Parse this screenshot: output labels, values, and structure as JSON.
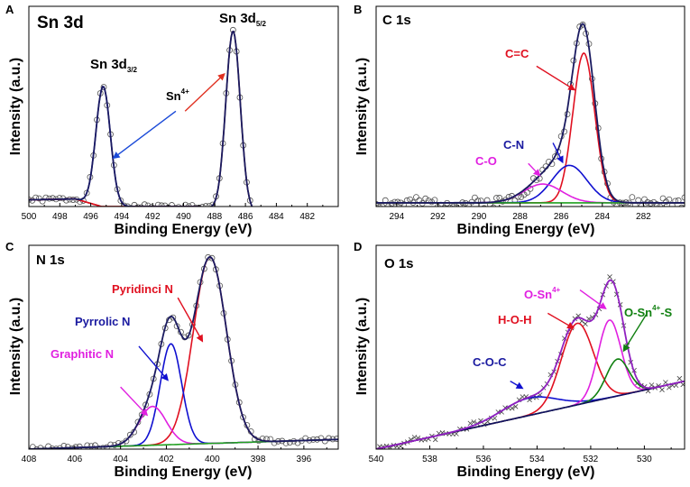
{
  "chart_data": [
    {
      "type": "line",
      "panel_letter": "A",
      "title": "Sn 3d",
      "xlabel": "Binding Energy (eV)",
      "ylabel": "Intensity (a.u.)",
      "xlim": [
        500,
        480
      ],
      "x_ticks": [
        500,
        498,
        496,
        494,
        492,
        490,
        488,
        486,
        484,
        482
      ],
      "ylim": [
        0,
        1.05
      ],
      "grid": false,
      "baseline": [
        [
          500,
          0.035
        ],
        [
          497,
          0.04
        ],
        [
          495.3,
          0.0
        ],
        [
          489,
          0.0
        ],
        [
          486.8,
          -0.03
        ],
        [
          480,
          -0.03
        ]
      ],
      "peaks": [
        {
          "name": "Sn 3d3/2",
          "center": 495.2,
          "fwhm": 1.1,
          "height": 0.63,
          "color": "#1010d0"
        },
        {
          "name": "Sn 3d5/2",
          "center": 486.8,
          "fwhm": 1.1,
          "height": 0.95,
          "color": "#8b2500"
        }
      ],
      "series": [
        {
          "name": "background",
          "color": "#e01020",
          "curve": "baseline"
        },
        {
          "name": "fit",
          "color": "#1a1a60",
          "curve": "envelope"
        }
      ],
      "data_points": {
        "marker": "circle",
        "step": 0.22,
        "noise": 0.012,
        "seed": 1
      },
      "annotations": [
        {
          "text": "Sn 3d",
          "sub": "3/2",
          "color": "#000000"
        },
        {
          "text": "Sn 3d",
          "sub": "5/2",
          "color": "#000000"
        },
        {
          "text": "Sn",
          "sup": "4+",
          "color": "#000000"
        }
      ],
      "arrows": [
        {
          "color": "#1a4ad8",
          "from": [
            490.5,
            0.5
          ],
          "to": [
            494.6,
            0.25
          ]
        },
        {
          "color": "#e03020",
          "from": [
            489.9,
            0.5
          ],
          "to": [
            487.3,
            0.7
          ]
        }
      ]
    },
    {
      "type": "line",
      "panel_letter": "B",
      "title": "C 1s",
      "xlabel": "Binding Energy (eV)",
      "ylabel": "Intensity (a.u.)",
      "xlim": [
        295,
        280
      ],
      "x_ticks": [
        294,
        292,
        290,
        288,
        286,
        284,
        282
      ],
      "ylim": [
        -0.02,
        1.05
      ],
      "grid": false,
      "baseline": [
        [
          295,
          0.0
        ],
        [
          280,
          0.0
        ]
      ],
      "peaks": [
        {
          "name": "C=C",
          "center": 284.9,
          "fwhm": 1.25,
          "height": 0.8,
          "color": "#e01020"
        },
        {
          "name": "C-N",
          "center": 285.6,
          "fwhm": 2.0,
          "height": 0.2,
          "color": "#1010d0"
        },
        {
          "name": "C-O",
          "center": 286.9,
          "fwhm": 2.2,
          "height": 0.1,
          "color": "#e020e0"
        }
      ],
      "series": [
        {
          "name": "background",
          "color": "#20a020",
          "curve": "baseline"
        },
        {
          "name": "fit",
          "color": "#1a1a60",
          "curve": "envelope"
        }
      ],
      "data_points": {
        "marker": "circle",
        "step": 0.15,
        "noise": 0.03,
        "seed": 2
      },
      "annotations": [
        {
          "text": "C=C",
          "color": "#e01020"
        },
        {
          "text": "C-N",
          "color": "#1a1aa0"
        },
        {
          "text": "C-O",
          "color": "#e020e0"
        }
      ],
      "arrows": [
        {
          "color": "#e01020",
          "from": [
            287.2,
            0.73
          ],
          "to": [
            285.3,
            0.6
          ]
        },
        {
          "color": "#1010d0",
          "from": [
            286.4,
            0.32
          ],
          "to": [
            285.9,
            0.21
          ]
        },
        {
          "color": "#e020e0",
          "from": [
            287.6,
            0.21
          ],
          "to": [
            287.0,
            0.14
          ]
        }
      ]
    },
    {
      "type": "line",
      "panel_letter": "C",
      "title": "N 1s",
      "xlabel": "Binding Energy (eV)",
      "ylabel": "Intensity (a.u.)",
      "xlim": [
        408,
        394.5
      ],
      "x_ticks": [
        408,
        406,
        404,
        402,
        400,
        398,
        396
      ],
      "ylim": [
        0,
        1.05
      ],
      "grid": false,
      "baseline": [
        [
          408,
          0.0
        ],
        [
          394.5,
          0.05
        ]
      ],
      "peaks": [
        {
          "name": "Pyridinci N",
          "center": 400.1,
          "fwhm": 1.7,
          "height": 0.96,
          "color": "#e01020"
        },
        {
          "name": "Pyrrolic N",
          "center": 401.8,
          "fwhm": 1.1,
          "height": 0.52,
          "color": "#1010d0"
        },
        {
          "name": "Graphitic N",
          "center": 402.6,
          "fwhm": 1.4,
          "height": 0.2,
          "color": "#e020e0"
        }
      ],
      "series": [
        {
          "name": "background",
          "color": "#20a020",
          "curve": "baseline"
        },
        {
          "name": "fit",
          "color": "#1a1a60",
          "curve": "envelope"
        }
      ],
      "data_points": {
        "marker": "circle",
        "step": 0.17,
        "noise": 0.012,
        "seed": 3
      },
      "annotations": [
        {
          "text": "Pyridinci N",
          "color": "#e01020"
        },
        {
          "text": "Pyrrolic N",
          "color": "#1a1aa0"
        },
        {
          "text": "Graphitic N",
          "color": "#e020e0"
        }
      ],
      "arrows": [
        {
          "color": "#e01020",
          "from": [
            401.5,
            0.78
          ],
          "to": [
            400.4,
            0.55
          ]
        },
        {
          "color": "#1010d0",
          "from": [
            403.2,
            0.53
          ],
          "to": [
            401.9,
            0.35
          ]
        },
        {
          "color": "#e020e0",
          "from": [
            404.0,
            0.32
          ],
          "to": [
            402.8,
            0.17
          ]
        }
      ]
    },
    {
      "type": "line",
      "panel_letter": "D",
      "title": "O 1s",
      "xlabel": "Binding Energy (eV)",
      "ylabel": "Intensity (a.u.)",
      "xlim": [
        540,
        528.5
      ],
      "x_ticks": [
        540,
        538,
        536,
        534,
        532,
        530
      ],
      "ylim": [
        0,
        1.05
      ],
      "grid": false,
      "baseline": [
        [
          540,
          0.0
        ],
        [
          528.5,
          0.35
        ]
      ],
      "peaks": [
        {
          "name": "C-O-C",
          "center": 534.3,
          "fwhm": 2.4,
          "height": 0.09,
          "color": "#1010d0"
        },
        {
          "name": "H-O-H",
          "center": 532.5,
          "fwhm": 1.4,
          "height": 0.42,
          "color": "#e01020"
        },
        {
          "name": "O-Sn4+",
          "center": 531.3,
          "fwhm": 1.0,
          "height": 0.4,
          "color": "#e020e0"
        },
        {
          "name": "O-Sn4+-S",
          "center": 531.0,
          "fwhm": 1.0,
          "height": 0.19,
          "color": "#108010"
        }
      ],
      "series": [
        {
          "name": "background",
          "color": "#101060",
          "curve": "baseline"
        },
        {
          "name": "fit",
          "color": "#9020c0",
          "curve": "envelope"
        }
      ],
      "data_points": {
        "marker": "cross",
        "step": 0.13,
        "noise": 0.02,
        "seed": 4
      },
      "annotations": [
        {
          "text": "C-O-C",
          "color": "#1a1aa0"
        },
        {
          "text": "H-O-H",
          "color": "#e01020"
        },
        {
          "text": "O-Sn",
          "sup": "4+",
          "color": "#e020e0"
        },
        {
          "text": "O-Sn",
          "sup": "4+",
          "tail": "-S",
          "color": "#108010"
        }
      ],
      "arrows": [
        {
          "color": "#1010d0",
          "from": [
            535.0,
            0.35
          ],
          "to": [
            534.5,
            0.31
          ]
        },
        {
          "color": "#e01020",
          "from": [
            533.6,
            0.7
          ],
          "to": [
            532.6,
            0.62
          ]
        },
        {
          "color": "#e020e0",
          "from": [
            532.4,
            0.82
          ],
          "to": [
            531.4,
            0.72
          ]
        },
        {
          "color": "#108010",
          "from": [
            529.9,
            0.7
          ],
          "to": [
            530.8,
            0.5
          ]
        }
      ]
    }
  ]
}
